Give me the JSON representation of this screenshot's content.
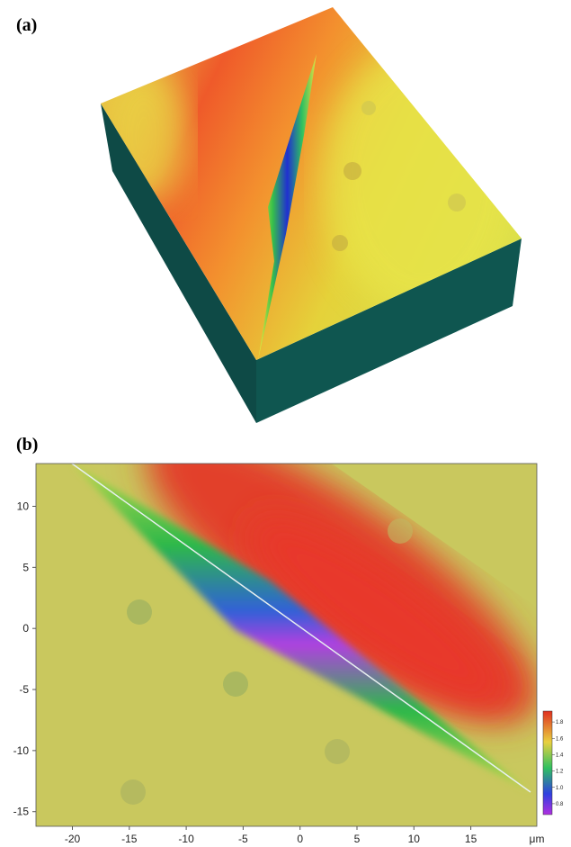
{
  "panel_labels": [
    "(a)",
    "(b)"
  ],
  "chart_data": {
    "type": "heightmap",
    "x_unit": "μm",
    "xlim": [
      -23.2,
      20.8
    ],
    "xticks": [
      -20,
      -15,
      -10,
      -5,
      0,
      5,
      10,
      15
    ],
    "ylim": [
      -16.2,
      13.5
    ],
    "yticks": [
      -15,
      -10,
      -5,
      0,
      5,
      10
    ],
    "colorbar": {
      "lim": [
        0.7,
        1.9
      ],
      "ticks": [
        {
          "value": 1.8,
          "label": "1.8"
        },
        {
          "value": 1.6,
          "label": "1.6"
        },
        {
          "value": 1.4,
          "label": "1.4"
        },
        {
          "value": 1.2,
          "label": "1.2"
        },
        {
          "value": 1,
          "label": "1.0"
        },
        {
          "value": 0.8,
          "label": "0.8"
        }
      ]
    }
  }
}
